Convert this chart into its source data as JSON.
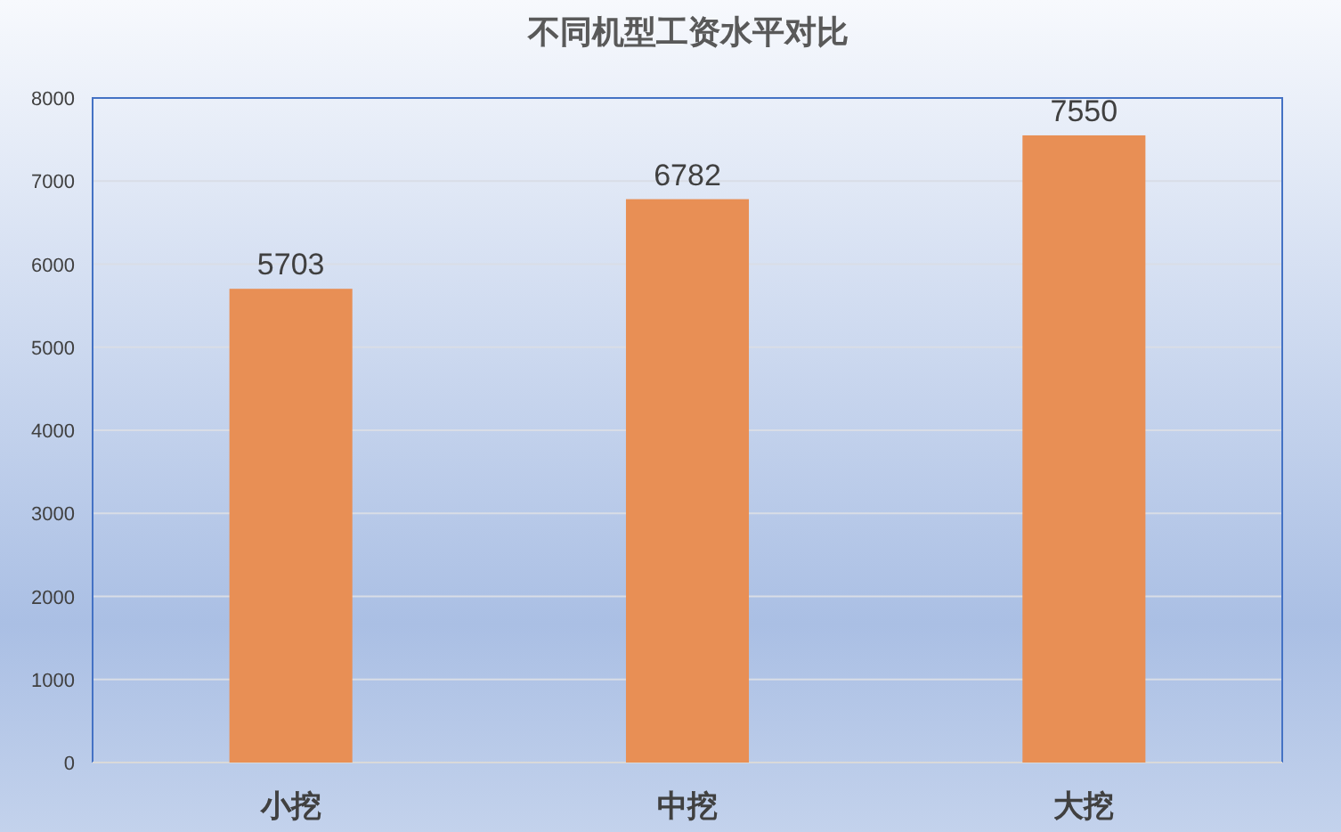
{
  "chart_data": {
    "type": "bar",
    "title": "不同机型工资水平对比",
    "categories": [
      "小挖",
      "中挖",
      "大挖"
    ],
    "values": [
      5703,
      6782,
      7550
    ],
    "color": "#e88f55",
    "ylim": [
      0,
      8000
    ],
    "yticks": [
      0,
      1000,
      2000,
      3000,
      4000,
      5000,
      6000,
      7000,
      8000
    ],
    "grid": "y",
    "data_labels": true
  }
}
